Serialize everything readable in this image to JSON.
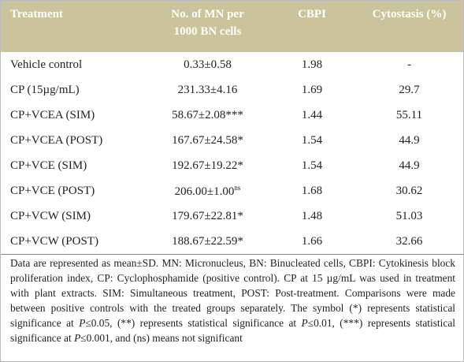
{
  "table": {
    "header": [
      "Treatment",
      "No. of MN per 1000 BN cells",
      "CBPI",
      "Cytostasis (%)"
    ],
    "rows": [
      [
        "Vehicle control",
        "0.33±0.58",
        "1.98",
        "-"
      ],
      [
        "CP (15µg/mL)",
        "231.33±4.16",
        "1.69",
        "29.7"
      ],
      [
        "CP+VCEA (SIM)",
        "58.67±2.08***",
        "1.44",
        "55.11"
      ],
      [
        "CP+VCEA (POST)",
        "167.67±24.58*",
        "1.54",
        "44.9"
      ],
      [
        "CP+VCE (SIM)",
        "192.67±19.22*",
        "1.54",
        "44.9"
      ],
      [
        "CP+VCE (POST)",
        {
          "text": "206.00±1.00",
          "sup": "ns"
        },
        "1.68",
        "30.62"
      ],
      [
        "CP+VCW (SIM)",
        "179.67±22.81*",
        "1.48",
        "51.03"
      ],
      [
        "CP+VCW (POST)",
        "188.67±22.59*",
        "1.66",
        "32.66"
      ]
    ],
    "footnote": [
      "Data are represented as mean±SD. MN: Micronucleus, BN: Binucleated cells, CBPI: Cytokinesis block proliferation index, CP: Cyclophosphamide (positive control). CP at 15 µg/mL was used in treatment with plant extracts. SIM: Simultaneous treatment, POST: Post-treatment. Comparisons were made between positive controls with the treated groups separately. The symbol (*) represents statistical significance at ",
      "P",
      "≤0.05, (**) represents statistical significance at ",
      "P",
      "≤0.01, (***) represents statistical significance at ",
      "P",
      "≤0.001, and (ns) means not significant"
    ]
  }
}
